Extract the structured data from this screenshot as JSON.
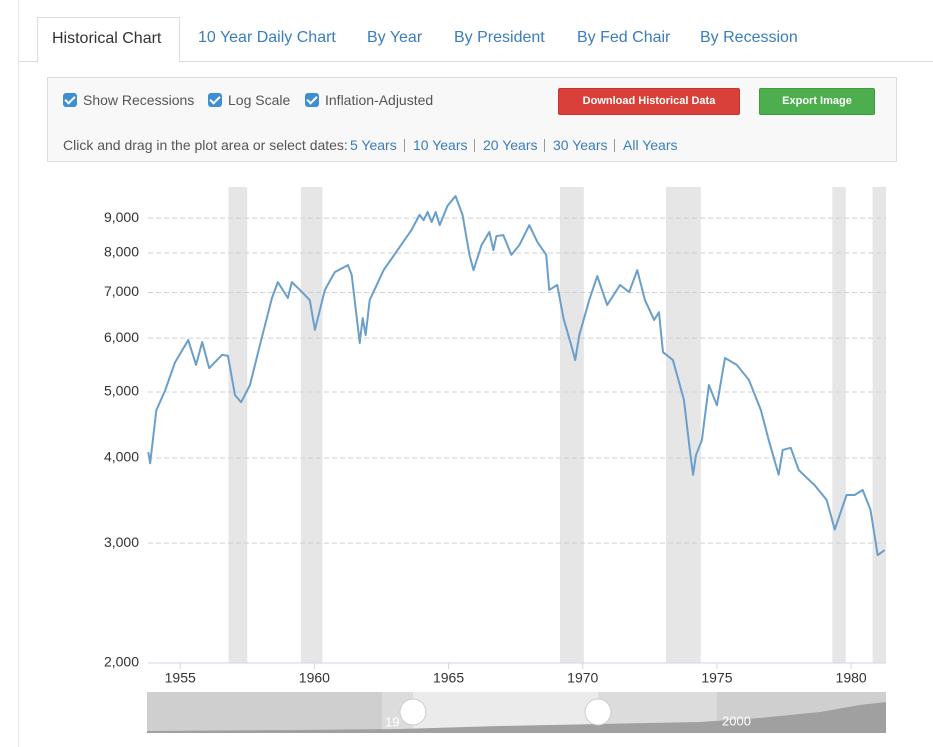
{
  "tabs": [
    "Historical Chart",
    "10 Year Daily Chart",
    "By Year",
    "By President",
    "By Fed Chair",
    "By Recession"
  ],
  "controls": {
    "checkboxes": [
      "Show Recessions",
      "Log Scale",
      "Inflation-Adjusted"
    ],
    "buttons": [
      "Download Historical Data",
      "Export Image"
    ],
    "range_prompt": "Click and drag in the plot area or select dates:",
    "range_links": [
      "5 Years",
      "10 Years",
      "20 Years",
      "30 Years",
      "All Years"
    ]
  },
  "chart_data": {
    "type": "line",
    "x": [
      1953.81,
      1953.88,
      1954.11,
      1954.44,
      1954.81,
      1955.3,
      1955.59,
      1955.82,
      1956.08,
      1956.56,
      1956.78,
      1957.04,
      1957.27,
      1957.6,
      1957.97,
      1958.42,
      1958.64,
      1959.01,
      1959.16,
      1959.46,
      1959.83,
      1960.02,
      1960.39,
      1960.76,
      1961.25,
      1961.39,
      1961.69,
      1961.8,
      1961.91,
      1962.06,
      1962.58,
      1963.1,
      1963.62,
      1963.92,
      1964.07,
      1964.22,
      1964.37,
      1964.52,
      1964.67,
      1964.96,
      1965.26,
      1965.52,
      1965.78,
      1965.93,
      1966.23,
      1966.52,
      1966.67,
      1966.78,
      1967.04,
      1967.34,
      1967.64,
      1968.01,
      1968.31,
      1968.64,
      1968.75,
      1969.05,
      1969.28,
      1969.57,
      1969.72,
      1969.87,
      1970.24,
      1970.54,
      1970.91,
      1971.39,
      1971.73,
      1972.03,
      1972.32,
      1972.66,
      1972.84,
      1972.99,
      1973.36,
      1973.77,
      1973.99,
      1974.11,
      1974.22,
      1974.44,
      1974.7,
      1975.0,
      1975.3,
      1975.74,
      1976.19,
      1976.64,
      1976.93,
      1977.3,
      1977.45,
      1977.75,
      1978.05,
      1978.35,
      1978.64,
      1979.09,
      1979.39,
      1979.83,
      1980.13,
      1980.43,
      1980.72,
      1980.99,
      1981.25
    ],
    "series": [
      {
        "color": "#6a9fcb",
        "values": [
          4080,
          3930,
          4700,
          5030,
          5530,
          5960,
          5480,
          5920,
          5420,
          5670,
          5650,
          4950,
          4830,
          5120,
          5860,
          6870,
          7250,
          6870,
          7250,
          7060,
          6820,
          6170,
          7060,
          7500,
          7680,
          7430,
          5900,
          6420,
          6060,
          6820,
          7550,
          8080,
          8650,
          9100,
          8940,
          9190,
          8880,
          9190,
          8790,
          9380,
          9700,
          9100,
          7950,
          7550,
          8220,
          8590,
          8080,
          8470,
          8500,
          7950,
          8220,
          8790,
          8300,
          7950,
          7060,
          7180,
          6420,
          5860,
          5570,
          6060,
          6820,
          7400,
          6710,
          7180,
          7010,
          7550,
          6820,
          6380,
          6550,
          5720,
          5570,
          4870,
          4110,
          3780,
          4040,
          4250,
          5120,
          4780,
          5610,
          5480,
          5210,
          4700,
          4250,
          3780,
          4110,
          4140,
          3840,
          3740,
          3650,
          3470,
          3140,
          3530,
          3530,
          3590,
          3360,
          2880,
          2930
        ]
      }
    ],
    "xlim": [
      1953.8,
      1981.3
    ],
    "xticks": [
      1955,
      1960,
      1965,
      1970,
      1975,
      1980
    ],
    "ylim": [
      2000,
      10000
    ],
    "yticks": [
      {
        "value": 2000,
        "label": "2,000"
      },
      {
        "value": 3000,
        "label": "3,000"
      },
      {
        "value": 4000,
        "label": "4,000"
      },
      {
        "value": 5000,
        "label": "5,000"
      },
      {
        "value": 6000,
        "label": "6,000"
      },
      {
        "value": 7000,
        "label": "7,000"
      },
      {
        "value": 8000,
        "label": "8,000"
      },
      {
        "value": 9000,
        "label": "9,000"
      }
    ],
    "log_scale": true,
    "grid": true,
    "recessions": [
      [
        1956.8,
        1957.5
      ],
      [
        1959.5,
        1960.3
      ],
      [
        1969.15,
        1970.04
      ],
      [
        1973.1,
        1974.4
      ],
      [
        1979.3,
        1979.8
      ],
      [
        1980.8,
        1981.3
      ]
    ],
    "recession_color": "#e6e6e6"
  },
  "navigator": {
    "labels": [
      "19",
      "2000"
    ]
  }
}
